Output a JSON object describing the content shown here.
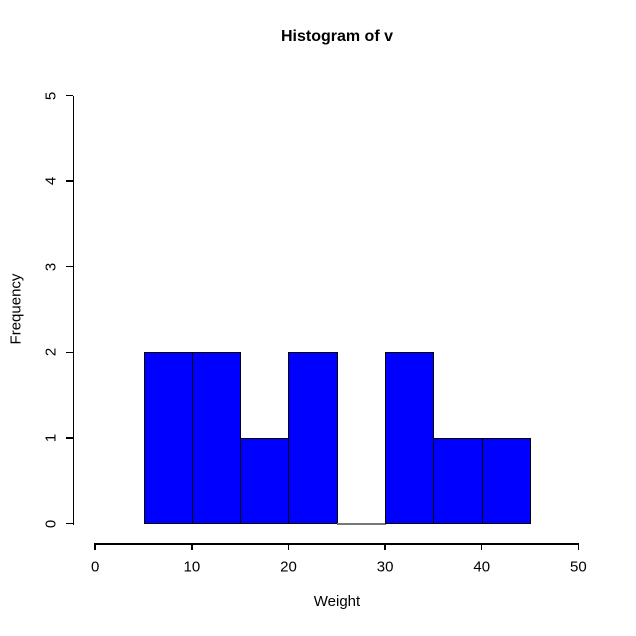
{
  "chart_data": {
    "type": "bar",
    "chart_kind": "histogram",
    "title": "Histogram of v",
    "xlabel": "Weight",
    "ylabel": "Frequency",
    "bin_edges": [
      5,
      10,
      15,
      20,
      25,
      30,
      35,
      40,
      45
    ],
    "counts": [
      2,
      2,
      1,
      2,
      0,
      2,
      1,
      1
    ],
    "x_ticks": [
      0,
      10,
      20,
      30,
      40,
      50
    ],
    "y_ticks": [
      0,
      1,
      2,
      3,
      4,
      5
    ],
    "xlim": [
      0,
      50
    ],
    "ylim": [
      0,
      5
    ],
    "bar_fill": "#0000ff",
    "bar_border": "#000000",
    "axis_color": "#000000",
    "zero_bar_color": "#777777",
    "background": "#ffffff",
    "grid": false,
    "legend": "none"
  }
}
